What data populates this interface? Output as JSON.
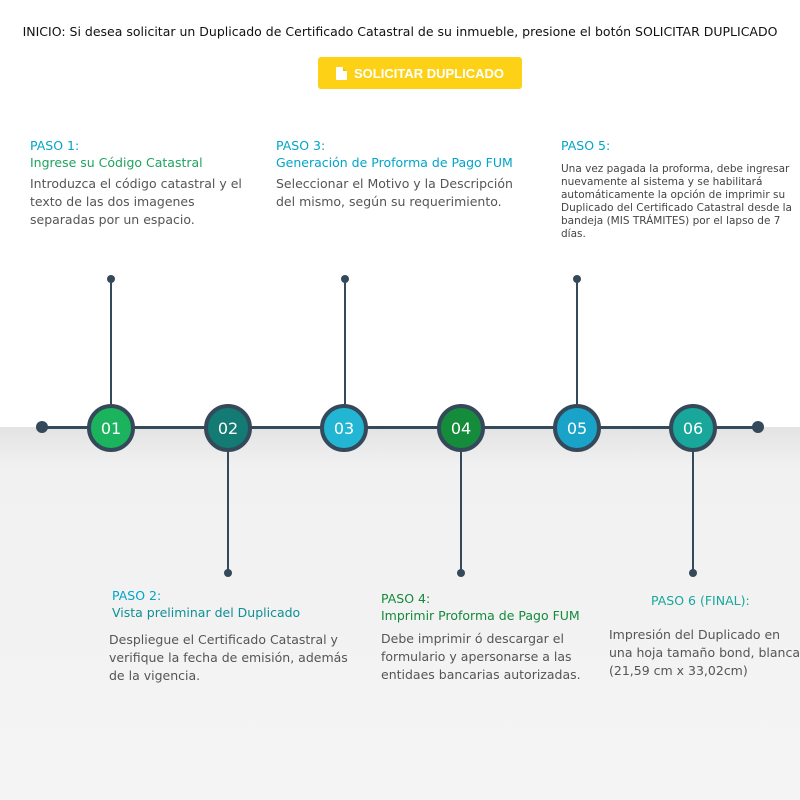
{
  "intro": "INICIO: Si desea solicitar un Duplicado de Certificado Catastral de su inmueble, presione el botón SOLICITAR DUPLICADO",
  "button": {
    "label": "SOLICITAR DUPLICADO",
    "icon": "document-icon",
    "color": "#fcd116"
  },
  "timeline": {
    "nodes": [
      "01",
      "02",
      "03",
      "04",
      "05",
      "06"
    ],
    "colors": [
      "#1bb35e",
      "#137a74",
      "#23b6d4",
      "#158c3c",
      "#1aa3c8",
      "#18a79a"
    ],
    "line_color": "#34495a"
  },
  "steps": [
    {
      "title": "PASO 1:",
      "subtitle": "Ingrese su Código Catastral",
      "desc": "Introduzca el código catastral y el texto de las dos imagenes separadas por un espacio."
    },
    {
      "title": "PASO 2:",
      "subtitle": "Vista preliminar del Duplicado",
      "desc": "Despliegue el Certificado Catastral y verifique la fecha de emisión, además de la vigencia."
    },
    {
      "title": "PASO 3:",
      "subtitle": "Generación de Proforma de Pago FUM",
      "desc": "Seleccionar el Motivo y la Descripción del mismo, según su requerimiento."
    },
    {
      "title": "PASO 4:",
      "subtitle": "Imprimir Proforma de Pago FUM",
      "desc": "Debe imprimir ó descargar el formulario y apersonarse a las entidaes bancarias autorizadas."
    },
    {
      "title": "PASO 5:",
      "subtitle": "",
      "desc": "Una vez pagada la proforma, debe ingresar nuevamente al sistema y se habilitará automáticamente la opción de imprimir su Duplicado del Certificado Catastral desde la bandeja (MIS TRÁMITES) por el lapso de 7 días."
    },
    {
      "title": "PASO 6 (FINAL):",
      "subtitle": "",
      "desc": "Impresión del Duplicado en una hoja tamaño bond, blanca (21,59 cm x 33,02cm)"
    }
  ]
}
